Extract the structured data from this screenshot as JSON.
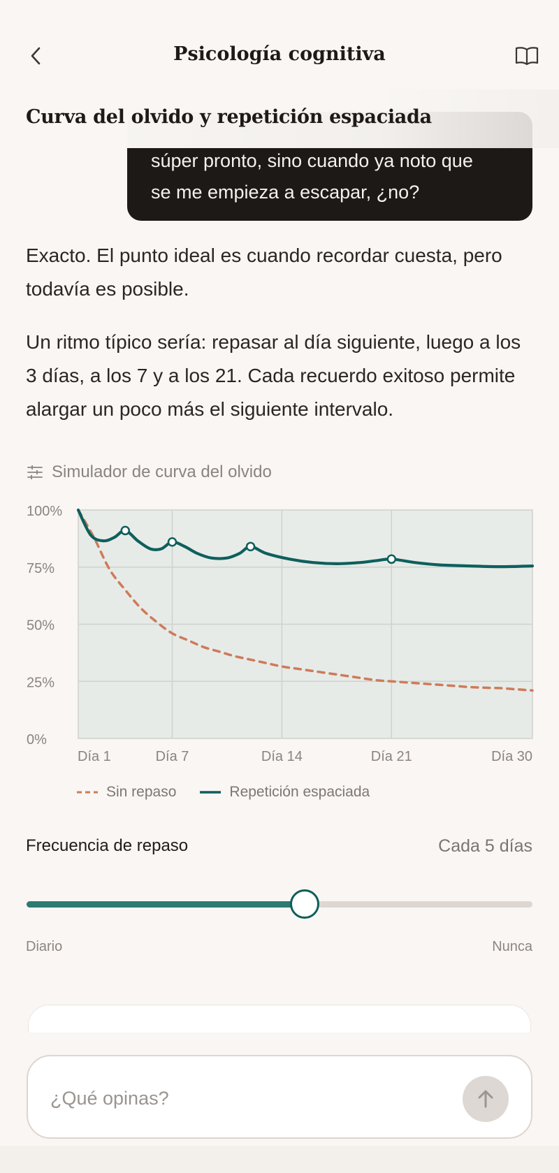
{
  "header": {
    "title": "Psicología cognitiva",
    "back_icon": "chevron-left-icon",
    "book_icon": "book-open-icon"
  },
  "section": {
    "title": "Curva del olvido y repetición espaciada"
  },
  "user_message": {
    "line1": "súper pronto, sino cuando ya noto que",
    "line2": "se me empieza a escapar, ¿no?"
  },
  "assistant": {
    "p1": "Exacto. El punto ideal es cuando recordar cuesta, pero todavía es posible.",
    "p2": "Un ritmo típico sería: repasar al día siguiente, luego a los 3 días, a los 7 y a los 21. Cada recuerdo exitoso permite alargar un poco más el siguiente intervalo."
  },
  "simulator": {
    "label": "Simulador de curva del olvido",
    "icon": "sliders-icon"
  },
  "chart_data": {
    "type": "line",
    "title": "",
    "xlabel": "",
    "ylabel": "",
    "xlim": [
      1,
      30
    ],
    "ylim": [
      0,
      100
    ],
    "x_ticks": [
      {
        "value": 1,
        "label": "Día 1"
      },
      {
        "value": 7,
        "label": "Día 7"
      },
      {
        "value": 14,
        "label": "Día 14"
      },
      {
        "value": 21,
        "label": "Día 21"
      },
      {
        "value": 30,
        "label": "Día 30"
      }
    ],
    "y_ticks": [
      {
        "value": 100,
        "label": "100%"
      },
      {
        "value": 75,
        "label": "75%"
      },
      {
        "value": 50,
        "label": "50%"
      },
      {
        "value": 25,
        "label": "25%"
      },
      {
        "value": 0,
        "label": "0%"
      }
    ],
    "grid": true,
    "legend_position": "bottom",
    "series": [
      {
        "name": "Sin repaso",
        "style": "dashed",
        "color": "#cf7a5b",
        "points": [
          [
            1,
            100
          ],
          [
            2,
            88
          ],
          [
            3,
            74
          ],
          [
            4,
            65
          ],
          [
            5,
            57
          ],
          [
            6,
            51
          ],
          [
            7,
            46
          ],
          [
            8,
            43
          ],
          [
            9,
            40
          ],
          [
            10,
            38
          ],
          [
            11,
            36
          ],
          [
            12,
            34.5
          ],
          [
            13,
            33
          ],
          [
            14,
            31.5
          ],
          [
            15,
            30.5
          ],
          [
            16,
            29.5
          ],
          [
            17,
            28.5
          ],
          [
            18,
            27.5
          ],
          [
            19,
            26.5
          ],
          [
            20,
            25.5
          ],
          [
            21,
            25
          ],
          [
            22,
            24.5
          ],
          [
            23,
            24
          ],
          [
            24,
            23.5
          ],
          [
            25,
            23
          ],
          [
            26,
            22.5
          ],
          [
            27,
            22.2
          ],
          [
            28,
            22
          ],
          [
            29,
            21.5
          ],
          [
            30,
            21
          ]
        ]
      },
      {
        "name": "Repetición espaciada",
        "style": "solid",
        "color": "#0e5f5c",
        "points": [
          [
            1,
            100
          ],
          [
            1.8,
            89
          ],
          [
            2.6,
            86.5
          ],
          [
            3.3,
            88
          ],
          [
            4,
            91
          ],
          [
            4.8,
            86.5
          ],
          [
            5.6,
            83
          ],
          [
            6.3,
            83
          ],
          [
            7,
            86
          ],
          [
            7.8,
            84
          ],
          [
            8.6,
            81
          ],
          [
            9.5,
            79
          ],
          [
            10.5,
            79
          ],
          [
            11.3,
            81
          ],
          [
            12,
            84
          ],
          [
            13,
            81
          ],
          [
            14.5,
            78.5
          ],
          [
            16,
            77
          ],
          [
            17.5,
            76.5
          ],
          [
            19,
            77
          ],
          [
            20,
            77.8
          ],
          [
            21,
            78.5
          ],
          [
            22.5,
            77
          ],
          [
            24,
            76
          ],
          [
            26,
            75.5
          ],
          [
            28,
            75.2
          ],
          [
            30,
            75.5
          ]
        ],
        "markers": [
          [
            4,
            91
          ],
          [
            7,
            86
          ],
          [
            12,
            84
          ],
          [
            21,
            78.5
          ]
        ]
      }
    ]
  },
  "frequency": {
    "label": "Frecuencia de repaso",
    "value_text": "Cada 5 días",
    "slider_fraction": 0.55,
    "min_label": "Diario",
    "max_label": "Nunca"
  },
  "composer": {
    "placeholder": "¿Qué opinas?",
    "send_icon": "arrow-up-icon"
  }
}
